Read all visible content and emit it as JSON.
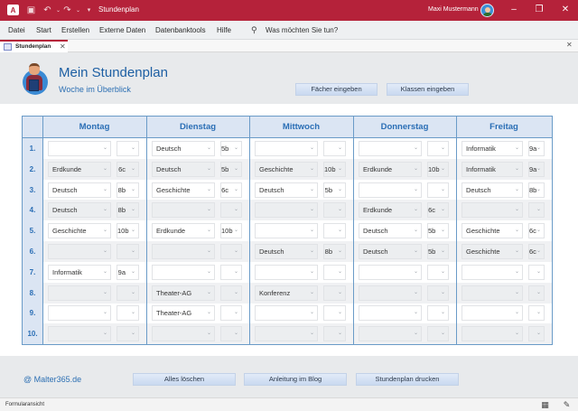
{
  "titlebar": {
    "app_icon": "access-icon",
    "title": "Stundenplan",
    "user": "Maxi Mustermann",
    "buttons": {
      "minimize": "–",
      "restore": "❐",
      "close": "✕"
    }
  },
  "menubar": {
    "items": [
      "Datei",
      "Start",
      "Erstellen",
      "Externe Daten",
      "Datenbanktools",
      "Hilfe"
    ],
    "tellme": "Was möchten Sie tun?"
  },
  "doc_tab": {
    "label": "Stundenplan",
    "close": "✕"
  },
  "doc_close": "✕",
  "header": {
    "title": "Mein Stundenplan",
    "subtitle": "Woche im Überblick",
    "buttons": [
      "Fächer eingeben",
      "Klassen eingeben"
    ]
  },
  "schedule": {
    "days": [
      "Montag",
      "Dienstag",
      "Mittwoch",
      "Donnerstag",
      "Freitag"
    ],
    "row_numbers": [
      "1.",
      "2.",
      "3.",
      "4.",
      "5.",
      "6.",
      "7.",
      "8.",
      "9.",
      "10."
    ],
    "rows": [
      [
        [
          "",
          ""
        ],
        [
          "Deutsch",
          "5b"
        ],
        [
          "",
          ""
        ],
        [
          "",
          ""
        ],
        [
          "Informatik",
          "9a"
        ]
      ],
      [
        [
          "Erdkunde",
          "6c"
        ],
        [
          "Deutsch",
          "5b"
        ],
        [
          "Geschichte",
          "10b"
        ],
        [
          "Erdkunde",
          "10b"
        ],
        [
          "Informatik",
          "9a"
        ]
      ],
      [
        [
          "Deutsch",
          "8b"
        ],
        [
          "Geschichte",
          "6c"
        ],
        [
          "Deutsch",
          "5b"
        ],
        [
          "",
          ""
        ],
        [
          "Deutsch",
          "8b"
        ]
      ],
      [
        [
          "Deutsch",
          "8b"
        ],
        [
          "",
          ""
        ],
        [
          "",
          ""
        ],
        [
          "Erdkunde",
          "6c"
        ],
        [
          "",
          ""
        ]
      ],
      [
        [
          "Geschichte",
          "10b"
        ],
        [
          "Erdkunde",
          "10b"
        ],
        [
          "",
          ""
        ],
        [
          "Deutsch",
          "5b"
        ],
        [
          "Geschichte",
          "6c"
        ]
      ],
      [
        [
          "",
          ""
        ],
        [
          "",
          ""
        ],
        [
          "Deutsch",
          "8b"
        ],
        [
          "Deutsch",
          "5b"
        ],
        [
          "Geschichte",
          "6c"
        ]
      ],
      [
        [
          "Informatik",
          "9a"
        ],
        [
          "",
          ""
        ],
        [
          "",
          ""
        ],
        [
          "",
          ""
        ],
        [
          "",
          ""
        ]
      ],
      [
        [
          "",
          ""
        ],
        [
          "Theater-AG",
          ""
        ],
        [
          "Konferenz",
          ""
        ],
        [
          "",
          ""
        ],
        [
          "",
          ""
        ]
      ],
      [
        [
          "",
          ""
        ],
        [
          "Theater-AG",
          ""
        ],
        [
          "",
          ""
        ],
        [
          "",
          ""
        ],
        [
          "",
          ""
        ]
      ],
      [
        [
          "",
          ""
        ],
        [
          "",
          ""
        ],
        [
          "",
          ""
        ],
        [
          "",
          ""
        ],
        [
          "",
          ""
        ]
      ]
    ]
  },
  "footer": {
    "link": "@ Malter365.de",
    "buttons": [
      "Alles löschen",
      "Anleitung im Blog",
      "Stundenplan drucken"
    ]
  },
  "statusbar": {
    "text": "Formularansicht"
  },
  "colors": {
    "accent": "#b5223a",
    "header_blue": "#2a6eb5",
    "table_border": "#6a9bc8"
  }
}
